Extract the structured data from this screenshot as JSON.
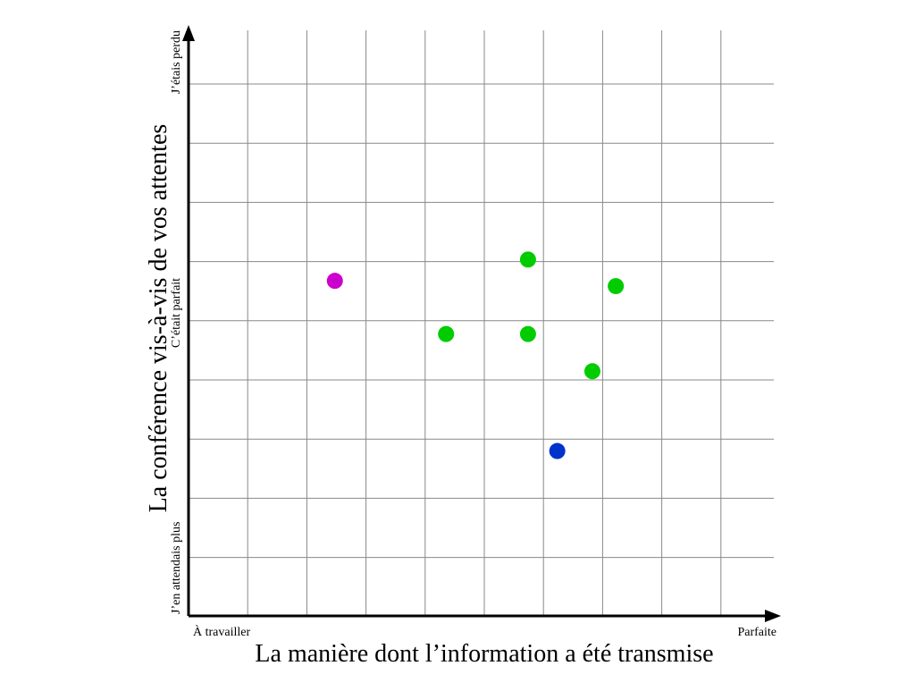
{
  "chart_data": {
    "type": "scatter",
    "title": "",
    "xlabel": "La manière dont l’information a été transmise",
    "ylabel": "La conférence vis-à-vis de vos attentes",
    "xlim": [
      0,
      10
    ],
    "ylim": [
      0,
      10
    ],
    "grid": true,
    "x_tick_labels": {
      "min": "À travailler",
      "max": "Parfaite"
    },
    "y_tick_labels": {
      "min": "J’en attendais plus",
      "mid": "C’était parfait",
      "max": "J’étais perdu"
    },
    "series": [
      {
        "color": "#cc00cc",
        "points": [
          {
            "x": 2.5,
            "y": 6.3
          }
        ]
      },
      {
        "color": "#00cc00",
        "points": [
          {
            "x": 5.8,
            "y": 6.7
          },
          {
            "x": 7.3,
            "y": 6.2
          },
          {
            "x": 4.4,
            "y": 5.3
          },
          {
            "x": 5.8,
            "y": 5.3
          },
          {
            "x": 6.9,
            "y": 4.6
          }
        ]
      },
      {
        "color": "#0033cc",
        "points": [
          {
            "x": 6.3,
            "y": 3.1
          }
        ]
      }
    ]
  }
}
